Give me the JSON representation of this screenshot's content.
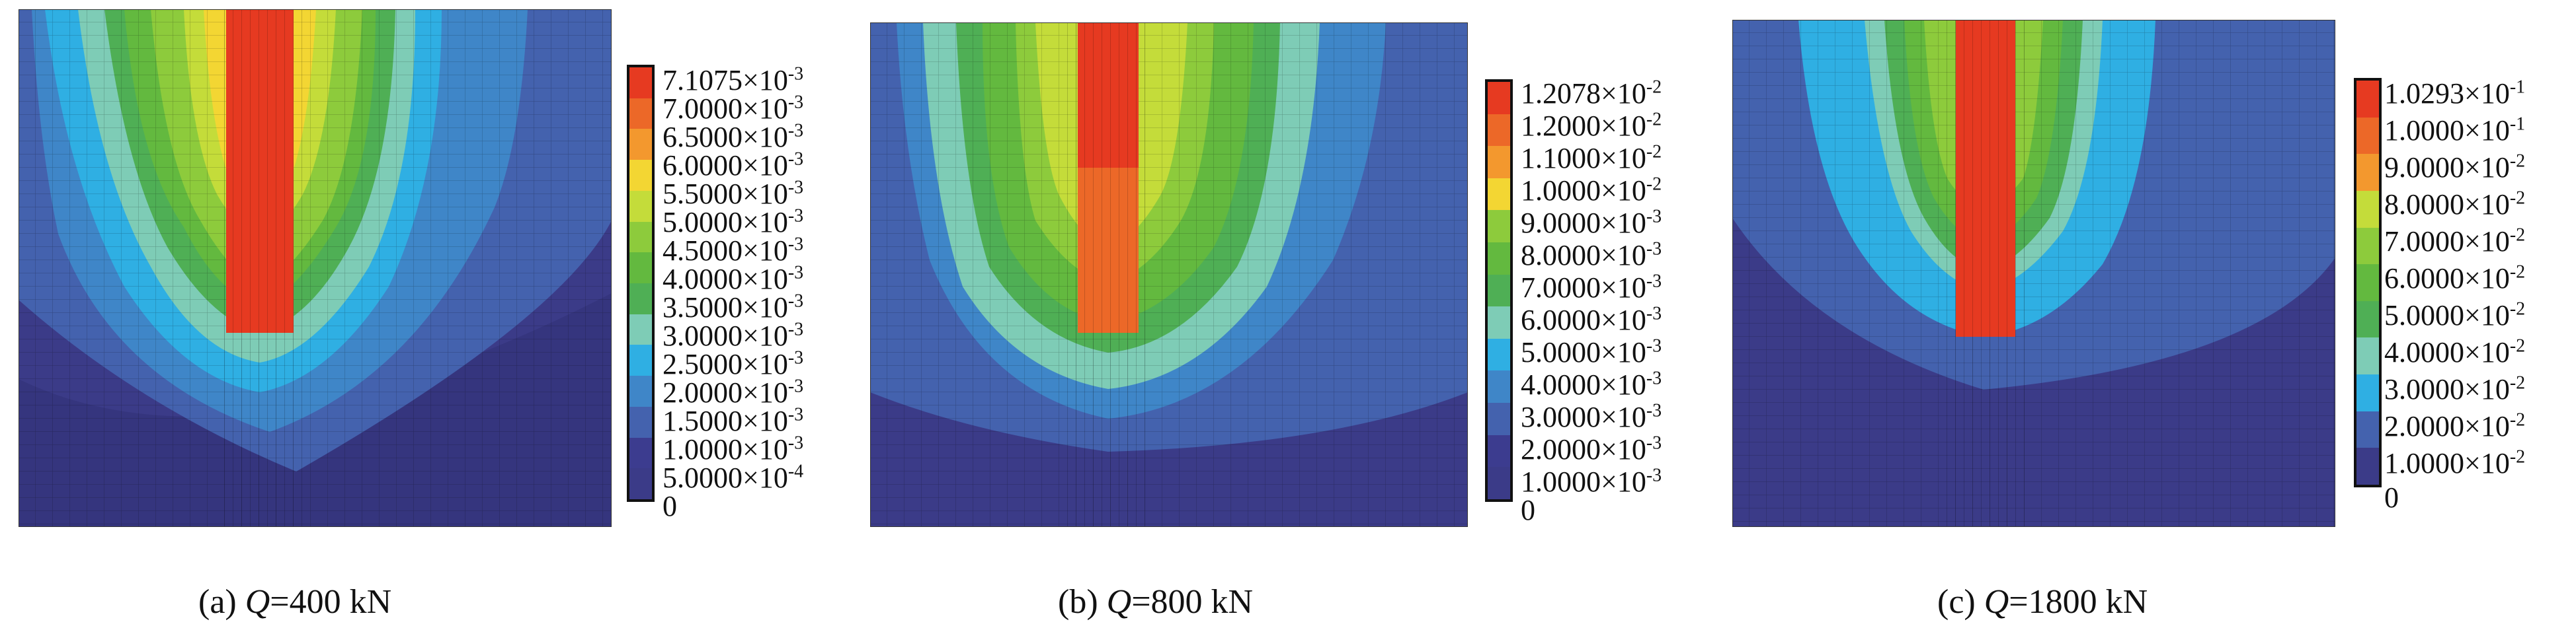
{
  "panels": [
    {
      "caption": {
        "prefix": "(a) ",
        "var": "Q",
        "rest": "=400 kN"
      },
      "colorbar_colors": [
        "#E63A21",
        "#EC6828",
        "#F3982E",
        "#F3D633",
        "#C4DC3A",
        "#8DCB3C",
        "#63B93F",
        "#4FAF55",
        "#7ECCB6",
        "#2FAFE3",
        "#3F86C8",
        "#4462AE",
        "#3C3C8F",
        "#3B3B88"
      ],
      "legend": [
        {
          "m": "7.1075",
          "e": "-3"
        },
        {
          "m": "7.0000",
          "e": "-3"
        },
        {
          "m": "6.5000",
          "e": "-3"
        },
        {
          "m": "6.0000",
          "e": "-3"
        },
        {
          "m": "5.5000",
          "e": "-3"
        },
        {
          "m": "5.0000",
          "e": "-3"
        },
        {
          "m": "4.5000",
          "e": "-3"
        },
        {
          "m": "4.0000",
          "e": "-3"
        },
        {
          "m": "3.5000",
          "e": "-3"
        },
        {
          "m": "3.0000",
          "e": "-3"
        },
        {
          "m": "2.5000",
          "e": "-3"
        },
        {
          "m": "2.0000",
          "e": "-3"
        },
        {
          "m": "1.5000",
          "e": "-3"
        },
        {
          "m": "1.0000",
          "e": "-3"
        },
        {
          "m": "5.0000",
          "e": "-4"
        },
        {
          "m": "0",
          "e": ""
        }
      ]
    },
    {
      "caption": {
        "prefix": "(b) ",
        "var": "Q",
        "rest": "=800 kN"
      },
      "colorbar_colors": [
        "#E63A21",
        "#EC6828",
        "#F3982E",
        "#F3D633",
        "#8DCB3C",
        "#63B93F",
        "#4FAF55",
        "#7ECCB6",
        "#2FAFE3",
        "#3F86C8",
        "#4462AE",
        "#3C3C8F",
        "#3B3B88"
      ],
      "legend": [
        {
          "m": "1.2078",
          "e": "-2"
        },
        {
          "m": "1.2000",
          "e": "-2"
        },
        {
          "m": "1.1000",
          "e": "-2"
        },
        {
          "m": "1.0000",
          "e": "-2"
        },
        {
          "m": "9.0000",
          "e": "-3"
        },
        {
          "m": "8.0000",
          "e": "-3"
        },
        {
          "m": "7.0000",
          "e": "-3"
        },
        {
          "m": "6.0000",
          "e": "-3"
        },
        {
          "m": "5.0000",
          "e": "-3"
        },
        {
          "m": "4.0000",
          "e": "-3"
        },
        {
          "m": "3.0000",
          "e": "-3"
        },
        {
          "m": "2.0000",
          "e": "-3"
        },
        {
          "m": "1.0000",
          "e": "-3"
        },
        {
          "m": "0",
          "e": ""
        }
      ]
    },
    {
      "caption": {
        "prefix": "(c) ",
        "var": "Q",
        "rest": "=1800 kN"
      },
      "colorbar_colors": [
        "#E63A21",
        "#EC6828",
        "#F3982E",
        "#C4DC3A",
        "#8DCB3C",
        "#63B93F",
        "#4FAF55",
        "#7ECCB6",
        "#2FAFE3",
        "#4462AE",
        "#3B3B88"
      ],
      "legend": [
        {
          "m": "1.0293",
          "e": "-1"
        },
        {
          "m": "1.0000",
          "e": "-1"
        },
        {
          "m": "9.0000",
          "e": "-2"
        },
        {
          "m": "8.0000",
          "e": "-2"
        },
        {
          "m": "7.0000",
          "e": "-2"
        },
        {
          "m": "6.0000",
          "e": "-2"
        },
        {
          "m": "5.0000",
          "e": "-2"
        },
        {
          "m": "4.0000",
          "e": "-2"
        },
        {
          "m": "3.0000",
          "e": "-2"
        },
        {
          "m": "2.0000",
          "e": "-2"
        },
        {
          "m": "1.0000",
          "e": "-2"
        },
        {
          "m": "0",
          "e": ""
        }
      ]
    }
  ]
}
